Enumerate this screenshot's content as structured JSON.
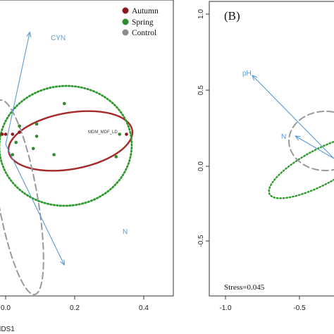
{
  "chart_data": [
    {
      "type": "scatter",
      "panel": "A",
      "xlabel": "MDS1",
      "ylabel": "",
      "x_ticks": [
        "0.0",
        "0.2",
        "0.4"
      ],
      "y_ticks": [],
      "grid": false,
      "legend": {
        "placement": "top-right",
        "entries": [
          {
            "label": "Autumn",
            "color": "#8b1a1a"
          },
          {
            "label": "Spring",
            "color": "#2e8b2e"
          },
          {
            "label": "Control",
            "color": "#8c8c8c"
          }
        ]
      },
      "series": [
        {
          "name": "Autumn",
          "color": "#8b1a1a",
          "points": [
            [
              -0.04,
              0.05
            ],
            [
              -0.02,
              0.05
            ],
            [
              -0.01,
              0.05
            ],
            [
              0.0,
              0.05
            ],
            [
              0.02,
              0.05
            ],
            [
              0.04,
              0.06
            ],
            [
              -0.03,
              -0.14
            ],
            [
              0.35,
              0.05
            ]
          ]
        },
        {
          "name": "Spring",
          "color": "#2e8b2e",
          "points": [
            [
              0.17,
              0.2
            ],
            [
              0.04,
              0.09
            ],
            [
              0.09,
              0.1
            ],
            [
              0.09,
              0.04
            ],
            [
              0.03,
              0.01
            ],
            [
              0.08,
              -0.02
            ],
            [
              0.02,
              -0.05
            ],
            [
              0.14,
              -0.05
            ],
            [
              0.32,
              -0.06
            ],
            [
              0.33,
              0.05
            ]
          ]
        }
      ],
      "vectors": [
        {
          "label": "CYN",
          "x": 0.07,
          "y": 0.55
        },
        {
          "label": "N",
          "x": 0.17,
          "y": -0.59
        },
        {
          "label": "MDM_MDF_LD",
          "x": 0.35,
          "y": 0.05
        }
      ],
      "ellipses": [
        {
          "group": "Autumn",
          "color": "#a52a2a",
          "style": "solid"
        },
        {
          "group": "Spring",
          "color": "#2e9a2e",
          "style": "dotted"
        },
        {
          "group": "Control",
          "color": "#9a9a9a",
          "style": "dashed"
        }
      ]
    },
    {
      "type": "scatter",
      "panel": "B",
      "title": "(B)",
      "xlabel": "",
      "ylabel": "",
      "xlim": [
        -1.0,
        0.0
      ],
      "ylim": [
        -1.0,
        1.0
      ],
      "x_ticks": [
        "-1.0",
        "-0.5"
      ],
      "y_ticks": [
        "1.0",
        "0.5",
        "0.0",
        "-0.5"
      ],
      "grid": false,
      "annotation": "Stress=0.045",
      "vectors": [
        {
          "label": "pH",
          "x": -0.82,
          "y": 0.6
        },
        {
          "label": "N",
          "x": -0.53,
          "y": 0.2
        }
      ],
      "ellipses": [
        {
          "group": "Spring",
          "color": "#2e9a2e",
          "style": "dotted"
        },
        {
          "group": "Control",
          "color": "#9a9a9a",
          "style": "dashed"
        }
      ]
    }
  ]
}
